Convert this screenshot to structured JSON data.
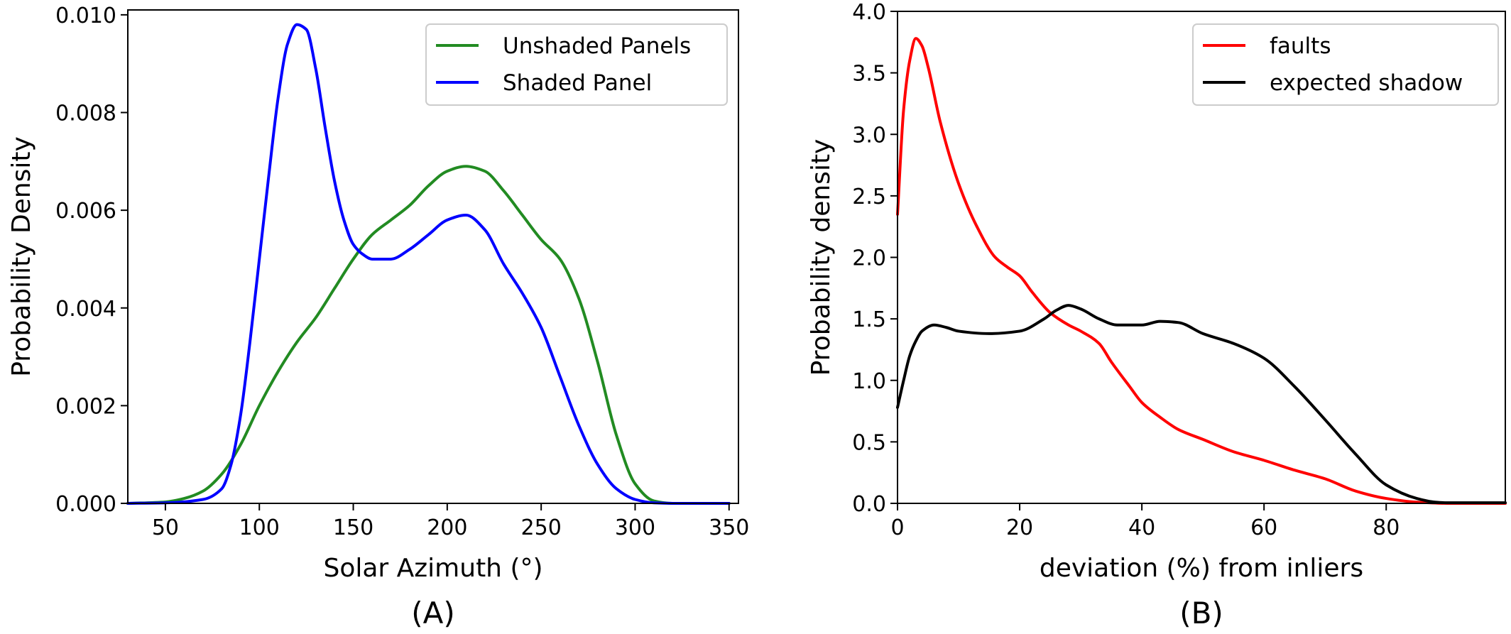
{
  "chart_data": [
    {
      "type": "line",
      "panel_label": "(A)",
      "xlabel": "Solar Azimuth (°)",
      "ylabel": "Probability Density",
      "xlim": [
        30,
        355
      ],
      "ylim": [
        0,
        0.0101
      ],
      "xticks": [
        50,
        100,
        150,
        200,
        250,
        300,
        350
      ],
      "xtick_labels": [
        "50",
        "100",
        "150",
        "200",
        "250",
        "300",
        "350"
      ],
      "yticks": [
        0,
        0.002,
        0.004,
        0.006,
        0.008,
        0.01
      ],
      "ytick_labels": [
        "0.000",
        "0.002",
        "0.004",
        "0.006",
        "0.008",
        "0.010"
      ],
      "grid": false,
      "legend_position": "upper-right",
      "series": [
        {
          "name": "Unshaded Panels",
          "color": "#228B22",
          "x": [
            30,
            50,
            60,
            70,
            80,
            90,
            100,
            110,
            120,
            130,
            140,
            150,
            160,
            170,
            180,
            190,
            200,
            210,
            220,
            230,
            240,
            250,
            260,
            270,
            280,
            290,
            300,
            310,
            320,
            330,
            340,
            350
          ],
          "y": [
            0,
            3e-05,
            0.0001,
            0.00025,
            0.0006,
            0.0012,
            0.002,
            0.0027,
            0.0033,
            0.0038,
            0.0044,
            0.005,
            0.0055,
            0.0058,
            0.0061,
            0.0065,
            0.0068,
            0.0069,
            0.0068,
            0.0064,
            0.0059,
            0.0054,
            0.005,
            0.0042,
            0.0029,
            0.0014,
            0.0004,
            5e-05,
            0,
            0,
            0,
            0
          ]
        },
        {
          "name": "Shaded Panel",
          "color": "#0000ff",
          "x": [
            30,
            50,
            70,
            80,
            85,
            90,
            95,
            100,
            105,
            110,
            115,
            120,
            125,
            130,
            135,
            140,
            145,
            150,
            155,
            160,
            170,
            180,
            190,
            200,
            210,
            220,
            230,
            240,
            250,
            260,
            270,
            280,
            290,
            300,
            310,
            320,
            330,
            350
          ],
          "y": [
            0,
            1e-05,
            8e-05,
            0.0003,
            0.0008,
            0.0018,
            0.0033,
            0.005,
            0.0067,
            0.0083,
            0.0094,
            0.0098,
            0.0097,
            0.0089,
            0.0077,
            0.0066,
            0.0058,
            0.0053,
            0.0051,
            0.005,
            0.005,
            0.0052,
            0.0055,
            0.0058,
            0.0059,
            0.0056,
            0.0049,
            0.0043,
            0.0036,
            0.0026,
            0.0016,
            0.0008,
            0.0003,
            8e-05,
            1e-05,
            0,
            0,
            0
          ]
        }
      ]
    },
    {
      "type": "line",
      "panel_label": "(B)",
      "xlabel": "deviation (%) from inliers",
      "ylabel": "Probability density",
      "xlim": [
        0,
        99.5
      ],
      "ylim": [
        0,
        4.0
      ],
      "xticks": [
        0,
        20,
        40,
        60,
        80
      ],
      "xtick_labels": [
        "0",
        "20",
        "40",
        "60",
        "80"
      ],
      "yticks": [
        0,
        0.5,
        1.0,
        1.5,
        2.0,
        2.5,
        3.0,
        3.5,
        4.0
      ],
      "ytick_labels": [
        "0.0",
        "0.5",
        "1.0",
        "1.5",
        "2.0",
        "2.5",
        "3.0",
        "3.5",
        "4.0"
      ],
      "grid": false,
      "legend_position": "upper-right",
      "series": [
        {
          "name": "faults",
          "color": "#ff0000",
          "x": [
            0,
            1,
            2,
            3,
            4,
            5,
            7,
            10,
            13,
            16,
            18,
            20,
            22,
            25,
            28,
            30,
            33,
            35,
            38,
            40,
            43,
            46,
            50,
            55,
            60,
            65,
            70,
            75,
            80,
            85,
            90,
            95,
            99.5
          ],
          "y": [
            2.35,
            3.2,
            3.6,
            3.78,
            3.72,
            3.55,
            3.1,
            2.6,
            2.25,
            2.0,
            1.92,
            1.85,
            1.72,
            1.55,
            1.45,
            1.4,
            1.3,
            1.15,
            0.95,
            0.82,
            0.7,
            0.6,
            0.52,
            0.42,
            0.35,
            0.27,
            0.2,
            0.1,
            0.04,
            0.01,
            0,
            0,
            0
          ]
        },
        {
          "name": "expected shadow",
          "color": "#000000",
          "x": [
            0,
            1,
            2,
            3,
            4,
            6,
            8,
            10,
            15,
            20,
            24,
            26,
            28,
            30,
            33,
            36,
            40,
            43,
            46,
            50,
            55,
            60,
            65,
            70,
            75,
            80,
            85,
            88,
            90,
            95,
            99.5
          ],
          "y": [
            0.78,
            1.0,
            1.2,
            1.32,
            1.4,
            1.45,
            1.43,
            1.4,
            1.38,
            1.4,
            1.5,
            1.57,
            1.61,
            1.58,
            1.5,
            1.45,
            1.45,
            1.48,
            1.47,
            1.38,
            1.3,
            1.18,
            0.95,
            0.68,
            0.4,
            0.15,
            0.04,
            0.01,
            0.005,
            0.005,
            0.005
          ]
        }
      ]
    }
  ]
}
